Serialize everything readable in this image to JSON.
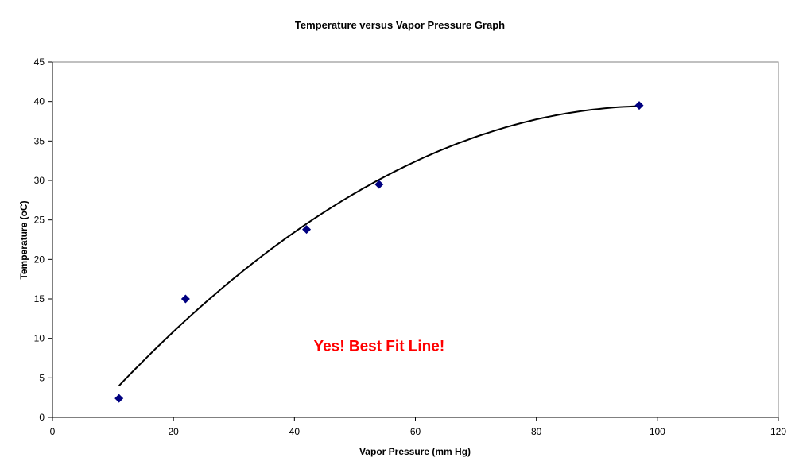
{
  "chart_data": {
    "type": "scatter",
    "title": "Temperature versus Vapor Pressure Graph",
    "xlabel": "Vapor Pressure (mm Hg)",
    "ylabel": "Temperature (oC)",
    "xlim": [
      0,
      120
    ],
    "ylim": [
      0,
      45
    ],
    "xticks": [
      0,
      20,
      40,
      60,
      80,
      100,
      120
    ],
    "yticks": [
      0,
      5,
      10,
      15,
      20,
      25,
      30,
      35,
      40,
      45
    ],
    "grid": false,
    "series": [
      {
        "name": "Temperature",
        "color": "#000080",
        "marker": "diamond",
        "x": [
          11,
          22,
          42,
          54,
          97
        ],
        "y": [
          2.4,
          15.0,
          23.8,
          29.5,
          39.5
        ]
      }
    ],
    "trendline": {
      "type": "polynomial-2",
      "coefficients": [
        -5.375,
        0.9023,
        -0.004543
      ],
      "xrange": [
        11,
        97
      ],
      "color": "#000000"
    },
    "annotation": {
      "text": "Yes! Best Fit Line!",
      "color": "#ff0000",
      "x": 54,
      "y": 8.4
    }
  }
}
